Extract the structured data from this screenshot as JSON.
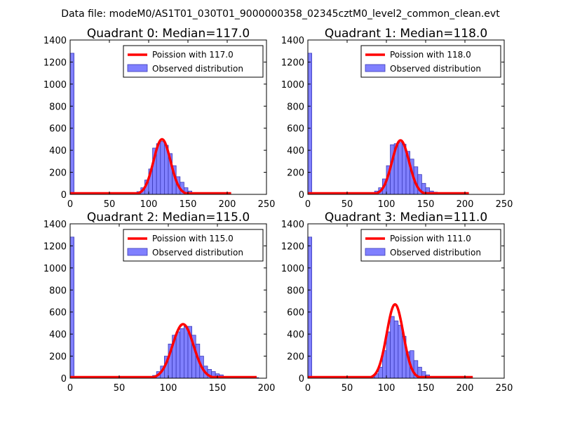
{
  "figure": {
    "suptitle": "Data file: modeM0/AS1T01_030T01_9000000358_02345cztM0_level2_common_clean.evt"
  },
  "colors": {
    "poisson_line": "#ff0000",
    "hist_fill": "#8080ff",
    "hist_edge": "#3b3bb8"
  },
  "chart_data": [
    {
      "type": "bar",
      "title": "Quadrant 0: Median=117.0",
      "xlim": [
        0,
        250
      ],
      "ylim": [
        0,
        1400
      ],
      "xticks": [
        0,
        50,
        100,
        150,
        200,
        250
      ],
      "yticks": [
        0,
        200,
        400,
        600,
        800,
        1000,
        1200,
        1400
      ],
      "legend": {
        "position": "top-right",
        "entries": [
          "Poission with 117.0",
          "Observed distribution"
        ]
      },
      "series": [
        {
          "name": "Observed distribution",
          "kind": "histogram",
          "bin_width": 5,
          "bins": [
            {
              "x": 0,
              "y": 1280
            },
            {
              "x": 70,
              "y": 5
            },
            {
              "x": 75,
              "y": 10
            },
            {
              "x": 80,
              "y": 10
            },
            {
              "x": 85,
              "y": 25
            },
            {
              "x": 90,
              "y": 60
            },
            {
              "x": 95,
              "y": 130
            },
            {
              "x": 100,
              "y": 230
            },
            {
              "x": 105,
              "y": 420
            },
            {
              "x": 110,
              "y": 460
            },
            {
              "x": 115,
              "y": 480
            },
            {
              "x": 120,
              "y": 445
            },
            {
              "x": 125,
              "y": 370
            },
            {
              "x": 130,
              "y": 260
            },
            {
              "x": 135,
              "y": 160
            },
            {
              "x": 140,
              "y": 110
            },
            {
              "x": 145,
              "y": 60
            },
            {
              "x": 150,
              "y": 30
            },
            {
              "x": 155,
              "y": 15
            },
            {
              "x": 160,
              "y": 10
            },
            {
              "x": 165,
              "y": 5
            },
            {
              "x": 170,
              "y": 5
            },
            {
              "x": 175,
              "y": 5
            },
            {
              "x": 180,
              "y": 5
            },
            {
              "x": 185,
              "y": 5
            },
            {
              "x": 190,
              "y": 5
            },
            {
              "x": 195,
              "y": 5
            }
          ]
        },
        {
          "name": "Poission with 117.0",
          "kind": "line",
          "mean": 117.0,
          "peak": 500,
          "x_range": [
            0,
            205
          ]
        }
      ]
    },
    {
      "type": "bar",
      "title": "Quadrant 1: Median=118.0",
      "xlim": [
        0,
        250
      ],
      "ylim": [
        0,
        1400
      ],
      "xticks": [
        0,
        50,
        100,
        150,
        200,
        250
      ],
      "yticks": [
        0,
        200,
        400,
        600,
        800,
        1000,
        1200,
        1400
      ],
      "legend": {
        "position": "top-right",
        "entries": [
          "Poission with 118.0",
          "Observed distribution"
        ]
      },
      "series": [
        {
          "name": "Observed distribution",
          "kind": "histogram",
          "bin_width": 5,
          "bins": [
            {
              "x": 0,
              "y": 1280
            },
            {
              "x": 75,
              "y": 5
            },
            {
              "x": 80,
              "y": 10
            },
            {
              "x": 85,
              "y": 30
            },
            {
              "x": 90,
              "y": 60
            },
            {
              "x": 95,
              "y": 140
            },
            {
              "x": 100,
              "y": 260
            },
            {
              "x": 105,
              "y": 450
            },
            {
              "x": 110,
              "y": 460
            },
            {
              "x": 115,
              "y": 470
            },
            {
              "x": 120,
              "y": 455
            },
            {
              "x": 125,
              "y": 390
            },
            {
              "x": 130,
              "y": 320
            },
            {
              "x": 135,
              "y": 250
            },
            {
              "x": 140,
              "y": 180
            },
            {
              "x": 145,
              "y": 100
            },
            {
              "x": 150,
              "y": 60
            },
            {
              "x": 155,
              "y": 30
            },
            {
              "x": 160,
              "y": 20
            },
            {
              "x": 165,
              "y": 10
            },
            {
              "x": 170,
              "y": 10
            },
            {
              "x": 175,
              "y": 5
            },
            {
              "x": 180,
              "y": 5
            },
            {
              "x": 185,
              "y": 5
            },
            {
              "x": 190,
              "y": 5
            },
            {
              "x": 195,
              "y": 5
            }
          ]
        },
        {
          "name": "Poission with 118.0",
          "kind": "line",
          "mean": 118.0,
          "peak": 490,
          "x_range": [
            0,
            205
          ]
        }
      ]
    },
    {
      "type": "bar",
      "title": "Quadrant 2: Median=115.0",
      "xlim": [
        0,
        200
      ],
      "ylim": [
        0,
        1400
      ],
      "xticks": [
        0,
        50,
        100,
        150,
        200
      ],
      "yticks": [
        0,
        200,
        400,
        600,
        800,
        1000,
        1200,
        1400
      ],
      "legend": {
        "position": "top-right",
        "entries": [
          "Poission with 115.0",
          "Observed distribution"
        ]
      },
      "series": [
        {
          "name": "Observed distribution",
          "kind": "histogram",
          "bin_width": 4,
          "bins": [
            {
              "x": 0,
              "y": 1280
            },
            {
              "x": 64,
              "y": 5
            },
            {
              "x": 68,
              "y": 5
            },
            {
              "x": 72,
              "y": 5
            },
            {
              "x": 76,
              "y": 5
            },
            {
              "x": 80,
              "y": 10
            },
            {
              "x": 84,
              "y": 25
            },
            {
              "x": 88,
              "y": 60
            },
            {
              "x": 92,
              "y": 110
            },
            {
              "x": 96,
              "y": 200
            },
            {
              "x": 100,
              "y": 310
            },
            {
              "x": 104,
              "y": 390
            },
            {
              "x": 108,
              "y": 420
            },
            {
              "x": 112,
              "y": 450
            },
            {
              "x": 116,
              "y": 470
            },
            {
              "x": 120,
              "y": 470
            },
            {
              "x": 124,
              "y": 390
            },
            {
              "x": 128,
              "y": 310
            },
            {
              "x": 132,
              "y": 200
            },
            {
              "x": 136,
              "y": 110
            },
            {
              "x": 140,
              "y": 80
            },
            {
              "x": 144,
              "y": 60
            },
            {
              "x": 148,
              "y": 40
            },
            {
              "x": 152,
              "y": 30
            },
            {
              "x": 156,
              "y": 15
            },
            {
              "x": 160,
              "y": 5
            },
            {
              "x": 164,
              "y": 5
            },
            {
              "x": 168,
              "y": 5
            },
            {
              "x": 172,
              "y": 5
            },
            {
              "x": 176,
              "y": 5
            },
            {
              "x": 180,
              "y": 5
            },
            {
              "x": 184,
              "y": 5
            },
            {
              "x": 188,
              "y": 5
            }
          ]
        },
        {
          "name": "Poission with 115.0",
          "kind": "line",
          "mean": 115.0,
          "peak": 490,
          "x_range": [
            0,
            190
          ]
        }
      ]
    },
    {
      "type": "bar",
      "title": "Quadrant 3: Median=111.0",
      "xlim": [
        0,
        250
      ],
      "ylim": [
        0,
        1400
      ],
      "xticks": [
        0,
        50,
        100,
        150,
        200,
        250
      ],
      "yticks": [
        0,
        200,
        400,
        600,
        800,
        1000,
        1200,
        1400
      ],
      "legend": {
        "position": "top-right",
        "entries": [
          "Poission with 111.0",
          "Observed distribution"
        ]
      },
      "series": [
        {
          "name": "Observed distribution",
          "kind": "histogram",
          "bin_width": 5,
          "bins": [
            {
              "x": 0,
              "y": 1280
            },
            {
              "x": 75,
              "y": 5
            },
            {
              "x": 80,
              "y": 10
            },
            {
              "x": 85,
              "y": 40
            },
            {
              "x": 90,
              "y": 100
            },
            {
              "x": 95,
              "y": 250
            },
            {
              "x": 100,
              "y": 420
            },
            {
              "x": 105,
              "y": 560
            },
            {
              "x": 110,
              "y": 520
            },
            {
              "x": 115,
              "y": 480
            },
            {
              "x": 120,
              "y": 380
            },
            {
              "x": 125,
              "y": 240
            },
            {
              "x": 130,
              "y": 250
            },
            {
              "x": 135,
              "y": 160
            },
            {
              "x": 140,
              "y": 100
            },
            {
              "x": 145,
              "y": 60
            },
            {
              "x": 150,
              "y": 30
            },
            {
              "x": 155,
              "y": 15
            },
            {
              "x": 160,
              "y": 10
            },
            {
              "x": 165,
              "y": 5
            },
            {
              "x": 170,
              "y": 5
            },
            {
              "x": 175,
              "y": 5
            },
            {
              "x": 180,
              "y": 5
            },
            {
              "x": 185,
              "y": 5
            },
            {
              "x": 190,
              "y": 5
            },
            {
              "x": 195,
              "y": 5
            },
            {
              "x": 200,
              "y": 5
            }
          ]
        },
        {
          "name": "Poission with 111.0",
          "kind": "line",
          "mean": 111.0,
          "peak": 670,
          "x_range": [
            0,
            210
          ]
        }
      ]
    }
  ]
}
